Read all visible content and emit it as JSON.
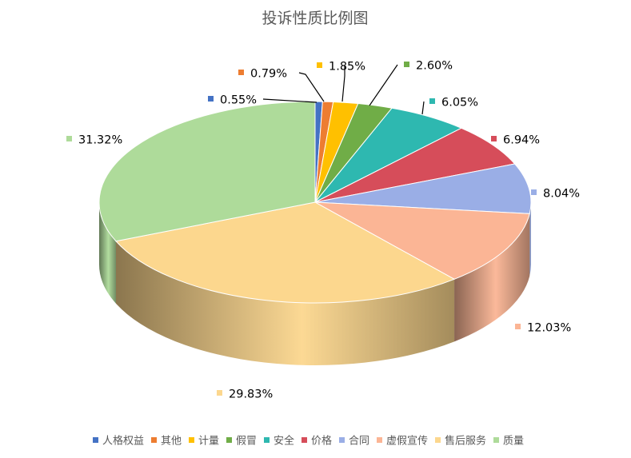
{
  "chart_data": {
    "type": "pie",
    "title": "投诉性质比例图",
    "categories": [
      "人格权益",
      "其他",
      "计量",
      "假冒",
      "安全",
      "价格",
      "合同",
      "虚假宣传",
      "售后服务",
      "质量"
    ],
    "values": [
      0.55,
      0.79,
      1.85,
      2.6,
      6.05,
      6.94,
      8.04,
      12.03,
      29.83,
      31.32
    ],
    "labels": [
      "0.55%",
      "0.79%",
      "1.85%",
      "2.60%",
      "6.05%",
      "6.94%",
      "8.04%",
      "12.03%",
      "29.83%",
      "31.32%"
    ],
    "colors": [
      "#4472c4",
      "#ed7d31",
      "#ffc000",
      "#70ad47",
      "#2eb8b0",
      "#d64d5a",
      "#9aaee6",
      "#fbb595",
      "#fcd78e",
      "#aedb9a"
    ],
    "legend_position": "bottom",
    "style": "3d"
  }
}
